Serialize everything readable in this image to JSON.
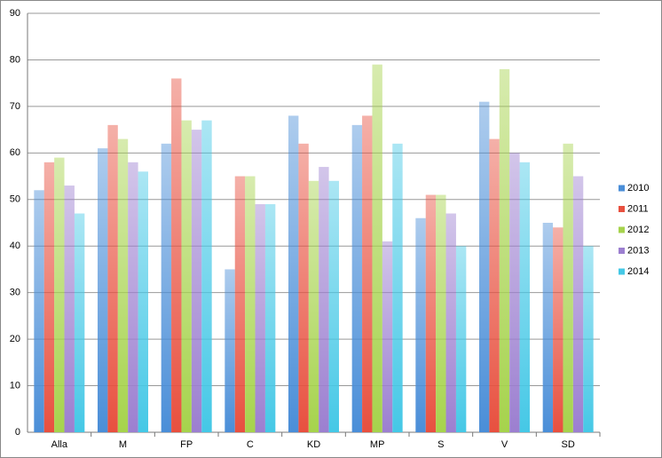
{
  "chart_data": {
    "type": "bar",
    "categories": [
      "Alla",
      "M",
      "FP",
      "C",
      "KD",
      "MP",
      "S",
      "V",
      "SD"
    ],
    "series": [
      {
        "name": "2010",
        "color": "#4a8ed8",
        "values": [
          52,
          61,
          62,
          35,
          68,
          66,
          46,
          71,
          45
        ]
      },
      {
        "name": "2011",
        "color": "#e8503f",
        "values": [
          58,
          66,
          76,
          55,
          62,
          68,
          51,
          63,
          44
        ]
      },
      {
        "name": "2012",
        "color": "#a6d34c",
        "values": [
          59,
          63,
          67,
          55,
          54,
          79,
          51,
          78,
          62
        ]
      },
      {
        "name": "2013",
        "color": "#9c7fd0",
        "values": [
          53,
          58,
          65,
          49,
          57,
          41,
          47,
          60,
          55
        ]
      },
      {
        "name": "2014",
        "color": "#45c8e6",
        "values": [
          47,
          56,
          67,
          49,
          54,
          62,
          40,
          58,
          40
        ]
      }
    ],
    "ylim": [
      0,
      90
    ],
    "yticks": [
      0,
      10,
      20,
      30,
      40,
      50,
      60,
      70,
      80,
      90
    ],
    "grid": true,
    "legend": "right"
  }
}
